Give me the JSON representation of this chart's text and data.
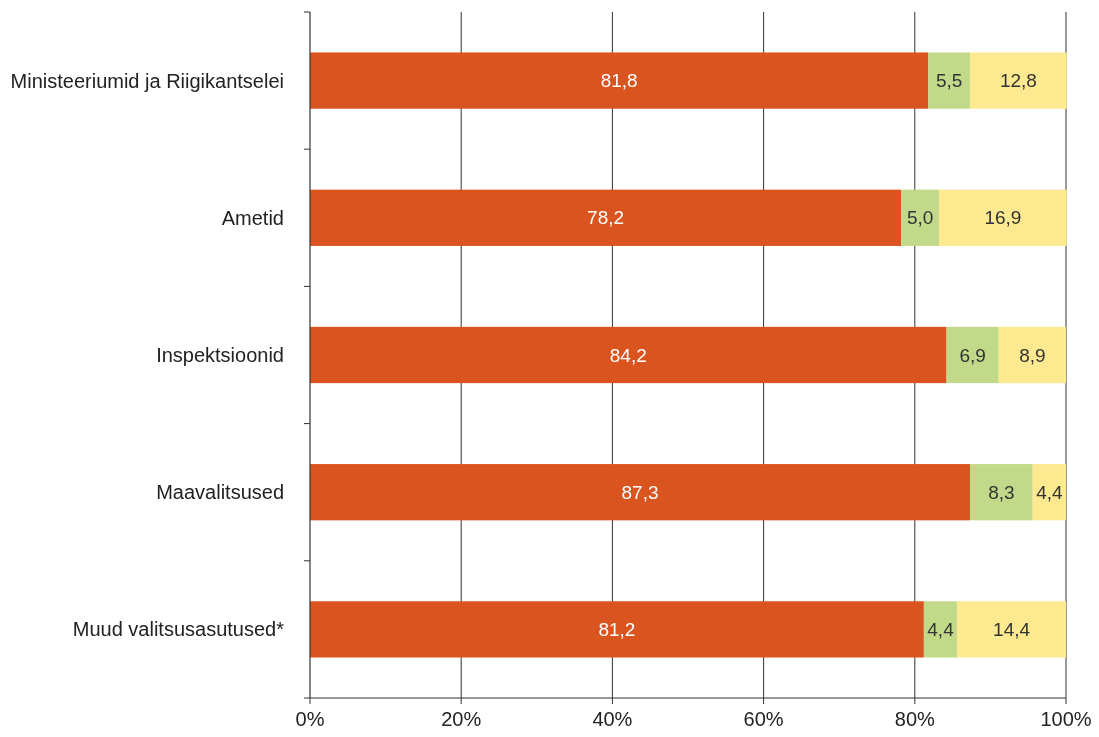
{
  "chart_data": {
    "type": "bar",
    "orientation": "horizontal",
    "stacked": true,
    "categories": [
      "Ministeeriumid ja Riigikantselei",
      "Ametid",
      "Inspektsioonid",
      "Maavalitsused",
      "Muud valitsusasutused*"
    ],
    "series": [
      {
        "color": "#d9541e",
        "values": [
          81.8,
          78.2,
          84.2,
          87.3,
          81.2
        ],
        "value_labels": [
          "81,8",
          "78,2",
          "84,2",
          "87,3",
          "81,2"
        ]
      },
      {
        "color": "#c3d98a",
        "values": [
          5.5,
          5.0,
          6.9,
          8.3,
          4.4
        ],
        "value_labels": [
          "5,5",
          "5,0",
          "6,9",
          "8,3",
          "4,4"
        ]
      },
      {
        "color": "#fde98f",
        "values": [
          12.8,
          16.9,
          8.9,
          4.4,
          14.4
        ],
        "value_labels": [
          "12,8",
          "16,9",
          "8,9",
          "4,4",
          "14,4"
        ]
      }
    ],
    "xlim": [
      0,
      100
    ],
    "xticks": [
      {
        "value": 0,
        "label": "0%"
      },
      {
        "value": 20,
        "label": "20%"
      },
      {
        "value": 40,
        "label": "40%"
      },
      {
        "value": 60,
        "label": "60%"
      },
      {
        "value": 80,
        "label": "80%"
      },
      {
        "value": 100,
        "label": "100%"
      }
    ],
    "grid": "x"
  }
}
